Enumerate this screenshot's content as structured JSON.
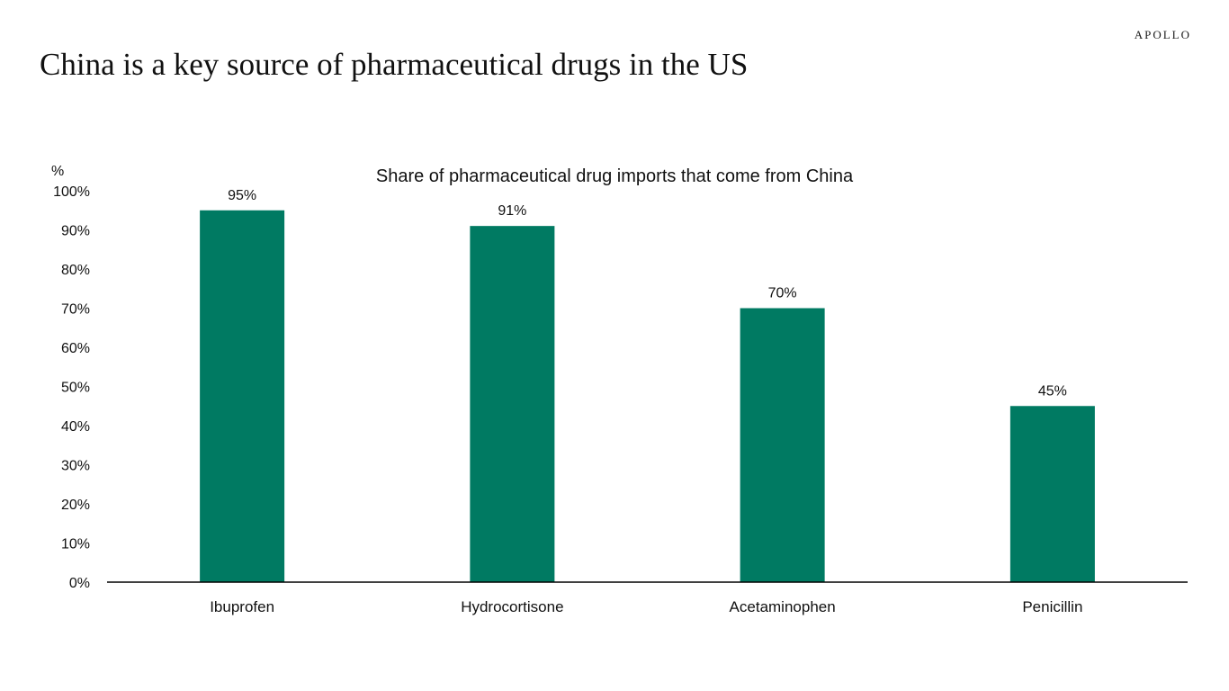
{
  "brand": "APOLLO",
  "headline": "China is a key source of pharmaceutical drugs in the US",
  "chart_data": {
    "type": "bar",
    "title": "Share of pharmaceutical drug imports that come from China",
    "ylabel": "%",
    "xlabel": "",
    "categories": [
      "Ibuprofen",
      "Hydrocortisone",
      "Acetaminophen",
      "Penicillin"
    ],
    "values": [
      95,
      91,
      70,
      45
    ],
    "data_labels": [
      "95%",
      "91%",
      "70%",
      "45%"
    ],
    "ylim": [
      0,
      100
    ],
    "yticks": [
      0,
      10,
      20,
      30,
      40,
      50,
      60,
      70,
      80,
      90,
      100
    ],
    "ytick_labels": [
      "0%",
      "10%",
      "20%",
      "30%",
      "40%",
      "50%",
      "60%",
      "70%",
      "80%",
      "90%",
      "100%"
    ],
    "grid": false,
    "legend": "none",
    "bar_color": "#007A62",
    "axis_color": "#000000"
  }
}
